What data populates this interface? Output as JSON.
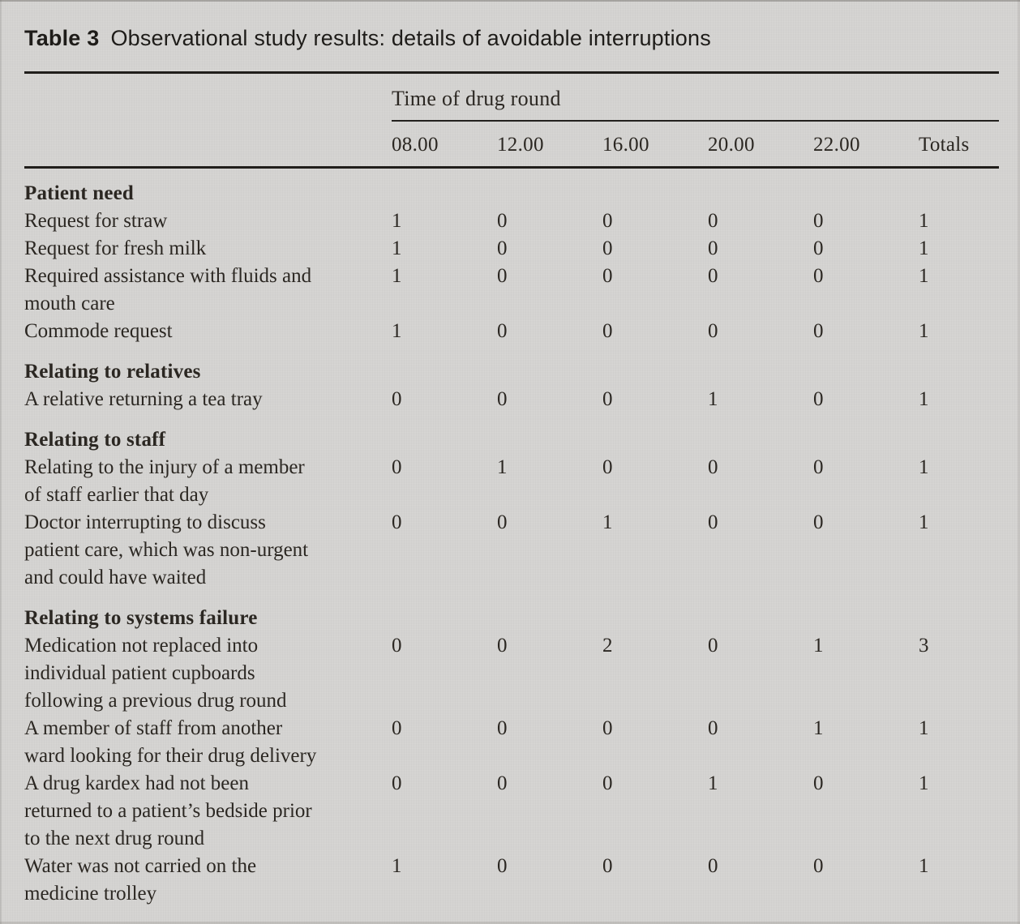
{
  "title": {
    "label": "Table 3",
    "text": "Observational study results: details of avoidable interruptions"
  },
  "table": {
    "group_header": "Time of drug round",
    "columns": [
      "08.00",
      "12.00",
      "16.00",
      "20.00",
      "22.00",
      "Totals"
    ],
    "rows": [
      {
        "type": "section",
        "lines": [
          "Patient need"
        ]
      },
      {
        "type": "data",
        "lines": [
          "Request for straw"
        ],
        "values": [
          1,
          0,
          0,
          0,
          0,
          1
        ]
      },
      {
        "type": "data",
        "lines": [
          "Request for fresh milk"
        ],
        "values": [
          1,
          0,
          0,
          0,
          0,
          1
        ]
      },
      {
        "type": "data",
        "lines": [
          "Required assistance with fluids and",
          "mouth care"
        ],
        "values": [
          1,
          0,
          0,
          0,
          0,
          1
        ]
      },
      {
        "type": "data",
        "lines": [
          "Commode request"
        ],
        "values": [
          1,
          0,
          0,
          0,
          0,
          1
        ]
      },
      {
        "type": "section",
        "lines": [
          "Relating to relatives"
        ]
      },
      {
        "type": "data",
        "lines": [
          "A relative returning a tea tray"
        ],
        "values": [
          0,
          0,
          0,
          1,
          0,
          1
        ]
      },
      {
        "type": "section",
        "lines": [
          "Relating to staff"
        ]
      },
      {
        "type": "data",
        "lines": [
          "Relating to the injury of a member",
          "of staff earlier that day"
        ],
        "values": [
          0,
          1,
          0,
          0,
          0,
          1
        ]
      },
      {
        "type": "data",
        "lines": [
          "Doctor interrupting to discuss",
          "patient care, which was non-urgent",
          "and could have waited"
        ],
        "values": [
          0,
          0,
          1,
          0,
          0,
          1
        ]
      },
      {
        "type": "section",
        "lines": [
          "Relating to systems failure"
        ]
      },
      {
        "type": "data",
        "lines": [
          "Medication not replaced into",
          "individual patient cupboards",
          "following a previous drug round"
        ],
        "values": [
          0,
          0,
          2,
          0,
          1,
          3
        ]
      },
      {
        "type": "data",
        "lines": [
          "A member of staff from another",
          "ward looking for their drug delivery"
        ],
        "values": [
          0,
          0,
          0,
          0,
          1,
          1
        ]
      },
      {
        "type": "data",
        "lines": [
          "A drug kardex had not been",
          "returned to a patient’s bedside prior",
          "to the next drug round"
        ],
        "values": [
          0,
          0,
          0,
          1,
          0,
          1
        ]
      },
      {
        "type": "data",
        "lines": [
          "Water was not carried on the",
          "medicine trolley"
        ],
        "values": [
          1,
          0,
          0,
          0,
          0,
          1
        ]
      }
    ]
  },
  "colors": {
    "background": "#d4d3d1",
    "text": "#2b2722",
    "rule": "#201e1b"
  }
}
